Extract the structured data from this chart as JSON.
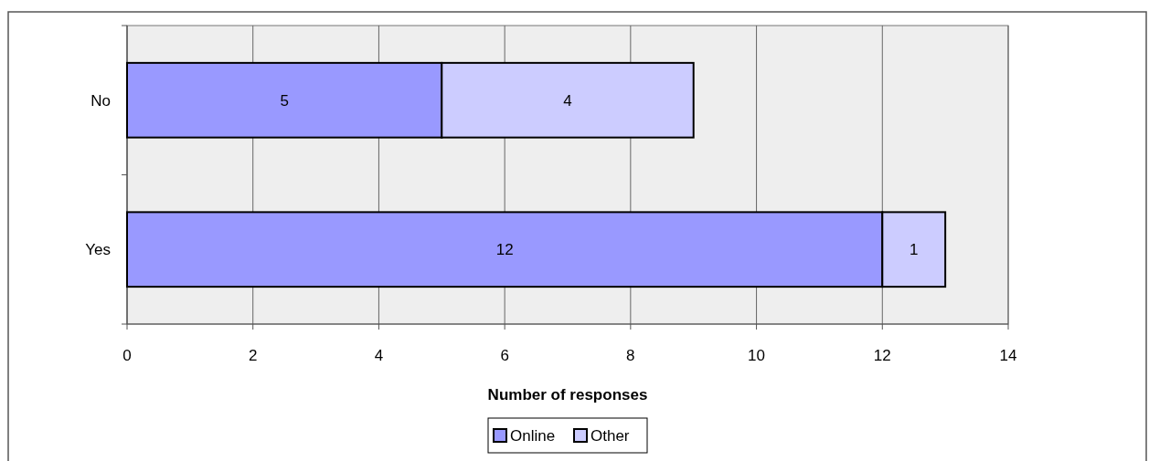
{
  "chart_data": {
    "type": "bar",
    "orientation": "horizontal",
    "stacked": true,
    "categories": [
      "No",
      "Yes"
    ],
    "series": [
      {
        "name": "Online",
        "color": "#9999ff",
        "values": [
          5,
          12
        ]
      },
      {
        "name": "Other",
        "color": "#ccccff",
        "values": [
          4,
          1
        ]
      }
    ],
    "xlim": [
      0,
      14
    ],
    "xticks": [
      0,
      2,
      4,
      6,
      8,
      10,
      12,
      14
    ],
    "xlabel": "Number of responses",
    "grid": "x",
    "legend": "bottom",
    "data_labels": true
  }
}
